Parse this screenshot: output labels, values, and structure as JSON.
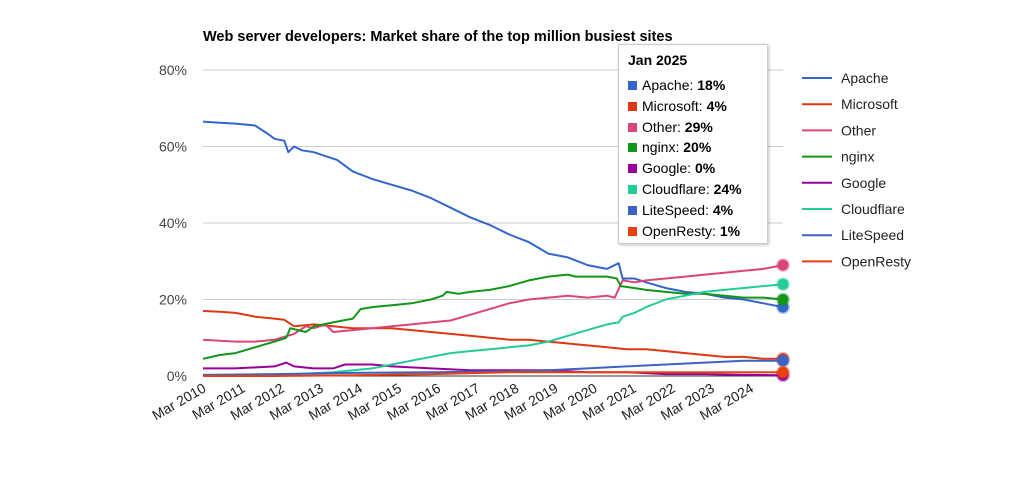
{
  "chart_data": {
    "type": "line",
    "title": "Web server developers: Market share of the top million busiest sites",
    "xlabel": "",
    "ylabel": "",
    "ylim": [
      0,
      80
    ],
    "y_ticks": [
      "0%",
      "20%",
      "40%",
      "60%",
      "80%"
    ],
    "y_tick_values": [
      0,
      20,
      40,
      60,
      80
    ],
    "x_tick_labels": [
      "Mar 2010",
      "Mar 2011",
      "Mar 2012",
      "Mar 2013",
      "Mar 2014",
      "Mar 2015",
      "Mar 2016",
      "Mar 2017",
      "Mar 2018",
      "Mar 2019",
      "Mar 2020",
      "Mar 2021",
      "Mar 2022",
      "Mar 2023",
      "Mar 2024"
    ],
    "x_tick_values": [
      2010.17,
      2011.17,
      2012.17,
      2013.17,
      2014.17,
      2015.17,
      2016.17,
      2017.17,
      2018.17,
      2019.17,
      2020.17,
      2021.17,
      2022.17,
      2023.17,
      2024.17
    ],
    "xlim": [
      2010.17,
      2025.0
    ],
    "grid": true,
    "legend_position": "right",
    "series": [
      {
        "name": "Apache",
        "color": "#3366cc",
        "points": [
          [
            2010.17,
            66.5
          ],
          [
            2010.6,
            66.2
          ],
          [
            2011.0,
            66.0
          ],
          [
            2011.5,
            65.5
          ],
          [
            2011.8,
            63.5
          ],
          [
            2012.0,
            62
          ],
          [
            2012.25,
            61.5
          ],
          [
            2012.35,
            58.5
          ],
          [
            2012.5,
            60
          ],
          [
            2012.7,
            59
          ],
          [
            2013.0,
            58.5
          ],
          [
            2013.3,
            57.5
          ],
          [
            2013.6,
            56.5
          ],
          [
            2014.0,
            53.5
          ],
          [
            2014.5,
            51.5
          ],
          [
            2015.0,
            50
          ],
          [
            2015.5,
            48.5
          ],
          [
            2016.0,
            46.5
          ],
          [
            2016.5,
            44
          ],
          [
            2017.0,
            41.5
          ],
          [
            2017.5,
            39.5
          ],
          [
            2018.0,
            37
          ],
          [
            2018.5,
            35
          ],
          [
            2019.0,
            32
          ],
          [
            2019.5,
            31
          ],
          [
            2020.0,
            29
          ],
          [
            2020.5,
            28
          ],
          [
            2020.8,
            29.5
          ],
          [
            2020.9,
            25.5
          ],
          [
            2021.2,
            25.5
          ],
          [
            2021.5,
            24.5
          ],
          [
            2022.0,
            23
          ],
          [
            2022.5,
            22
          ],
          [
            2023.0,
            21.5
          ],
          [
            2023.5,
            20.5
          ],
          [
            2024.0,
            20
          ],
          [
            2024.5,
            19
          ],
          [
            2025.0,
            18
          ]
        ]
      },
      {
        "name": "Microsoft",
        "color": "#dc3912",
        "points": [
          [
            2010.17,
            17
          ],
          [
            2010.6,
            16.8
          ],
          [
            2011.0,
            16.5
          ],
          [
            2011.5,
            15.5
          ],
          [
            2012.0,
            15
          ],
          [
            2012.25,
            14.7
          ],
          [
            2012.5,
            13
          ],
          [
            2013.0,
            13.5
          ],
          [
            2013.5,
            13
          ],
          [
            2014.0,
            12.5
          ],
          [
            2014.5,
            12.5
          ],
          [
            2015.0,
            12.5
          ],
          [
            2015.5,
            12
          ],
          [
            2016.0,
            11.5
          ],
          [
            2016.5,
            11
          ],
          [
            2017.0,
            10.5
          ],
          [
            2017.5,
            10
          ],
          [
            2018.0,
            9.5
          ],
          [
            2018.5,
            9.5
          ],
          [
            2019.0,
            9
          ],
          [
            2019.5,
            8.5
          ],
          [
            2020.0,
            8
          ],
          [
            2020.5,
            7.5
          ],
          [
            2021.0,
            7
          ],
          [
            2021.5,
            7
          ],
          [
            2022.0,
            6.5
          ],
          [
            2022.5,
            6
          ],
          [
            2023.0,
            5.5
          ],
          [
            2023.5,
            5
          ],
          [
            2024.0,
            5
          ],
          [
            2024.5,
            4.5
          ],
          [
            2025.0,
            4.5
          ]
        ]
      },
      {
        "name": "Other",
        "color": "#dd4477",
        "points": [
          [
            2010.17,
            9.5
          ],
          [
            2010.6,
            9.2
          ],
          [
            2011.0,
            9
          ],
          [
            2011.5,
            9
          ],
          [
            2012.0,
            9.5
          ],
          [
            2012.5,
            11
          ],
          [
            2012.8,
            13
          ],
          [
            2013.0,
            12.5
          ],
          [
            2013.3,
            13.5
          ],
          [
            2013.5,
            11.5
          ],
          [
            2014.0,
            12
          ],
          [
            2014.5,
            12.5
          ],
          [
            2015.0,
            13
          ],
          [
            2015.5,
            13.5
          ],
          [
            2016.0,
            14
          ],
          [
            2016.5,
            14.5
          ],
          [
            2017.0,
            16
          ],
          [
            2017.5,
            17.5
          ],
          [
            2018.0,
            19
          ],
          [
            2018.5,
            20
          ],
          [
            2019.0,
            20.5
          ],
          [
            2019.5,
            21
          ],
          [
            2020.0,
            20.5
          ],
          [
            2020.5,
            21
          ],
          [
            2020.7,
            20.5
          ],
          [
            2020.9,
            25
          ],
          [
            2021.2,
            24.5
          ],
          [
            2021.5,
            25
          ],
          [
            2022.0,
            25.5
          ],
          [
            2022.5,
            26
          ],
          [
            2023.0,
            26.5
          ],
          [
            2023.5,
            27
          ],
          [
            2024.0,
            27.5
          ],
          [
            2024.5,
            28
          ],
          [
            2025.0,
            29
          ]
        ]
      },
      {
        "name": "nginx",
        "color": "#109618",
        "points": [
          [
            2010.17,
            4.5
          ],
          [
            2010.6,
            5.5
          ],
          [
            2011.0,
            6
          ],
          [
            2011.5,
            7.5
          ],
          [
            2012.0,
            9
          ],
          [
            2012.3,
            10
          ],
          [
            2012.4,
            12.5
          ],
          [
            2012.6,
            12
          ],
          [
            2012.8,
            11.5
          ],
          [
            2013.0,
            13
          ],
          [
            2013.5,
            14
          ],
          [
            2014.0,
            15
          ],
          [
            2014.2,
            17.5
          ],
          [
            2014.5,
            18
          ],
          [
            2015.0,
            18.5
          ],
          [
            2015.5,
            19
          ],
          [
            2016.0,
            20
          ],
          [
            2016.3,
            21
          ],
          [
            2016.4,
            22
          ],
          [
            2016.7,
            21.5
          ],
          [
            2017.0,
            22
          ],
          [
            2017.5,
            22.5
          ],
          [
            2018.0,
            23.5
          ],
          [
            2018.5,
            25
          ],
          [
            2019.0,
            26
          ],
          [
            2019.5,
            26.5
          ],
          [
            2019.7,
            26
          ],
          [
            2020.0,
            26
          ],
          [
            2020.5,
            26
          ],
          [
            2020.75,
            25.5
          ],
          [
            2020.85,
            23.5
          ],
          [
            2021.2,
            23
          ],
          [
            2021.5,
            22.5
          ],
          [
            2022.0,
            22
          ],
          [
            2022.5,
            21.5
          ],
          [
            2023.0,
            21.5
          ],
          [
            2023.5,
            21
          ],
          [
            2024.0,
            20.5
          ],
          [
            2024.5,
            20.5
          ],
          [
            2025.0,
            20
          ]
        ]
      },
      {
        "name": "Google",
        "color": "#990099",
        "points": [
          [
            2010.17,
            2
          ],
          [
            2011.0,
            2
          ],
          [
            2012.0,
            2.5
          ],
          [
            2012.3,
            3.5
          ],
          [
            2012.5,
            2.5
          ],
          [
            2013.0,
            2
          ],
          [
            2013.5,
            2
          ],
          [
            2013.8,
            3
          ],
          [
            2014.5,
            3
          ],
          [
            2015.0,
            2.5
          ],
          [
            2016.0,
            2
          ],
          [
            2017.0,
            1.5
          ],
          [
            2018.0,
            1.5
          ],
          [
            2019.0,
            1.5
          ],
          [
            2020.0,
            1
          ],
          [
            2021.0,
            1
          ],
          [
            2022.0,
            0.5
          ],
          [
            2023.0,
            0.5
          ],
          [
            2024.0,
            0.3
          ],
          [
            2025.0,
            0.2
          ]
        ]
      },
      {
        "name": "Cloudflare",
        "color": "#22cc99",
        "points": [
          [
            2010.17,
            0
          ],
          [
            2011.5,
            0
          ],
          [
            2012.5,
            0.5
          ],
          [
            2013.5,
            1
          ],
          [
            2014.5,
            2
          ],
          [
            2015.0,
            3
          ],
          [
            2015.5,
            4
          ],
          [
            2016.0,
            5
          ],
          [
            2016.5,
            6
          ],
          [
            2017.0,
            6.5
          ],
          [
            2017.5,
            7
          ],
          [
            2018.0,
            7.5
          ],
          [
            2018.5,
            8
          ],
          [
            2019.0,
            9
          ],
          [
            2019.5,
            10.5
          ],
          [
            2020.0,
            12
          ],
          [
            2020.5,
            13.5
          ],
          [
            2020.8,
            14
          ],
          [
            2020.9,
            15.5
          ],
          [
            2021.2,
            16.5
          ],
          [
            2021.5,
            18
          ],
          [
            2022.0,
            20
          ],
          [
            2022.5,
            21
          ],
          [
            2023.0,
            22
          ],
          [
            2023.5,
            22.5
          ],
          [
            2024.0,
            23
          ],
          [
            2024.5,
            23.5
          ],
          [
            2025.0,
            24
          ]
        ]
      },
      {
        "name": "LiteSpeed",
        "color": "#3b62c4",
        "points": [
          [
            2010.17,
            0.3
          ],
          [
            2012.0,
            0.5
          ],
          [
            2014.0,
            0.8
          ],
          [
            2016.0,
            1
          ],
          [
            2018.0,
            1.2
          ],
          [
            2019.0,
            1.5
          ],
          [
            2020.0,
            2
          ],
          [
            2021.0,
            2.5
          ],
          [
            2022.0,
            3
          ],
          [
            2023.0,
            3.5
          ],
          [
            2024.0,
            4
          ],
          [
            2025.0,
            4
          ]
        ]
      },
      {
        "name": "OpenResty",
        "color": "#e8400f",
        "points": [
          [
            2010.17,
            0
          ],
          [
            2012.0,
            0
          ],
          [
            2014.0,
            0.2
          ],
          [
            2016.0,
            0.5
          ],
          [
            2018.0,
            1
          ],
          [
            2019.0,
            1
          ],
          [
            2020.0,
            1
          ],
          [
            2021.0,
            1
          ],
          [
            2022.0,
            1
          ],
          [
            2023.0,
            1
          ],
          [
            2024.0,
            1
          ],
          [
            2025.0,
            1
          ]
        ]
      }
    ]
  },
  "tooltip": {
    "title": "Jan 2025",
    "rows": [
      {
        "label": "Apache:",
        "value": "18%",
        "color": "#3366cc"
      },
      {
        "label": "Microsoft:",
        "value": "4%",
        "color": "#dc3912"
      },
      {
        "label": "Other:",
        "value": "29%",
        "color": "#dd4477"
      },
      {
        "label": "nginx:",
        "value": "20%",
        "color": "#109618"
      },
      {
        "label": "Google:",
        "value": "0%",
        "color": "#990099"
      },
      {
        "label": "Cloudflare:",
        "value": "24%",
        "color": "#22cc99"
      },
      {
        "label": "LiteSpeed:",
        "value": "4%",
        "color": "#3b62c4"
      },
      {
        "label": "OpenResty:",
        "value": "1%",
        "color": "#e8400f"
      }
    ]
  }
}
